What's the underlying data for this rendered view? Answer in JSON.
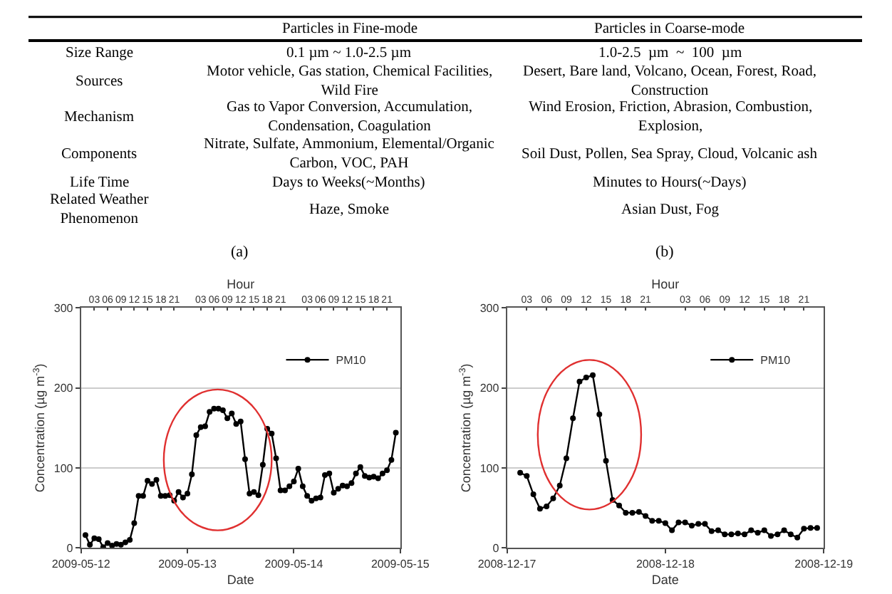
{
  "chart_data": [
    {
      "type": "other",
      "annotations": [
        "Particles in Fine-mode",
        "Particles in Coarse-mode",
        "Size Range",
        "0.1 µm ~ 1.0-2.5 µm",
        "1.0-2.5  µm  ~  100  µm",
        "Sources",
        "Motor vehicle, Gas station, Chemical Facilities, Wild Fire",
        "Desert, Bare land, Volcano, Ocean, Forest, Road, Construction",
        "Mechanism",
        "Gas to Vapor Conversion, Accumulation, Condensation, Coagulation",
        "Wind Erosion, Friction, Abrasion, Combustion, Explosion,",
        "Components",
        "Nitrate, Sulfate, Ammonium, Elemental/Organic Carbon, VOC, PAH",
        "Soil Dust, Pollen, Sea Spray, Cloud, Volcanic ash",
        "Life Time",
        "Days to Weeks(~Months)",
        "Minutes to Hours(~Days)",
        "Related Weather Phenomenon",
        "Haze, Smoke",
        "Asian Dust, Fog"
      ]
    },
    {
      "type": "line",
      "title": "(a)",
      "xlabel": "Date",
      "ylabel": "Concentration (µg m$^{-3}$)",
      "x2label": "Hour",
      "xlim": [
        "2009-05-12",
        "2009-05-15"
      ],
      "xticks": [
        {
          "value": "2009-05-12",
          "label": "2009-05-12"
        },
        {
          "value": "2009-05-13",
          "label": "2009-05-13"
        },
        {
          "value": "2009-05-14",
          "label": "2009-05-14"
        },
        {
          "value": "2009-05-15",
          "label": "2009-05-15"
        }
      ],
      "x2lim": [
        "2009-05-12",
        "2009-05-15"
      ],
      "x2ticks": [
        {
          "value": "2009-05-12T03:00",
          "label": "03"
        },
        {
          "value": "2009-05-12T06:00",
          "label": "06"
        },
        {
          "value": "2009-05-12T09:00",
          "label": "09"
        },
        {
          "value": "2009-05-12T12:00",
          "label": "12"
        },
        {
          "value": "2009-05-12T15:00",
          "label": "15"
        },
        {
          "value": "2009-05-12T18:00",
          "label": "18"
        },
        {
          "value": "2009-05-12T21:00",
          "label": "21"
        },
        {
          "value": "2009-05-13T03:00",
          "label": "03"
        },
        {
          "value": "2009-05-13T06:00",
          "label": "06"
        },
        {
          "value": "2009-05-13T09:00",
          "label": "09"
        },
        {
          "value": "2009-05-13T12:00",
          "label": "12"
        },
        {
          "value": "2009-05-13T15:00",
          "label": "15"
        },
        {
          "value": "2009-05-13T18:00",
          "label": "18"
        },
        {
          "value": "2009-05-13T21:00",
          "label": "21"
        },
        {
          "value": "2009-05-14T03:00",
          "label": "03"
        },
        {
          "value": "2009-05-14T06:00",
          "label": "06"
        },
        {
          "value": "2009-05-14T09:00",
          "label": "09"
        },
        {
          "value": "2009-05-14T12:00",
          "label": "12"
        },
        {
          "value": "2009-05-14T15:00",
          "label": "15"
        },
        {
          "value": "2009-05-14T18:00",
          "label": "18"
        },
        {
          "value": "2009-05-14T21:00",
          "label": "21"
        }
      ],
      "ylim": [
        0,
        300
      ],
      "yticks": [
        0,
        100,
        200,
        300
      ],
      "grid": "y",
      "legend": "top right",
      "marker": "circle",
      "line_style": "solid",
      "x": [
        "2009-05-12T01:00",
        "2009-05-12T02:00",
        "2009-05-12T03:00",
        "2009-05-12T04:00",
        "2009-05-12T05:00",
        "2009-05-12T06:00",
        "2009-05-12T07:00",
        "2009-05-12T08:00",
        "2009-05-12T09:00",
        "2009-05-12T10:00",
        "2009-05-12T11:00",
        "2009-05-12T12:00",
        "2009-05-12T13:00",
        "2009-05-12T14:00",
        "2009-05-12T15:00",
        "2009-05-12T16:00",
        "2009-05-12T17:00",
        "2009-05-12T18:00",
        "2009-05-12T19:00",
        "2009-05-12T20:00",
        "2009-05-12T21:00",
        "2009-05-12T22:00",
        "2009-05-12T23:00",
        "2009-05-13T00:00",
        "2009-05-13T01:00",
        "2009-05-13T02:00",
        "2009-05-13T03:00",
        "2009-05-13T04:00",
        "2009-05-13T05:00",
        "2009-05-13T06:00",
        "2009-05-13T07:00",
        "2009-05-13T08:00",
        "2009-05-13T09:00",
        "2009-05-13T10:00",
        "2009-05-13T11:00",
        "2009-05-13T12:00",
        "2009-05-13T13:00",
        "2009-05-13T14:00",
        "2009-05-13T15:00",
        "2009-05-13T16:00",
        "2009-05-13T17:00",
        "2009-05-13T18:00",
        "2009-05-13T19:00",
        "2009-05-13T20:00",
        "2009-05-13T21:00",
        "2009-05-13T22:00",
        "2009-05-13T23:00",
        "2009-05-14T00:00",
        "2009-05-14T01:00",
        "2009-05-14T02:00",
        "2009-05-14T03:00",
        "2009-05-14T04:00",
        "2009-05-14T05:00",
        "2009-05-14T06:00",
        "2009-05-14T07:00",
        "2009-05-14T08:00",
        "2009-05-14T09:00",
        "2009-05-14T10:00",
        "2009-05-14T11:00",
        "2009-05-14T12:00",
        "2009-05-14T13:00",
        "2009-05-14T14:00",
        "2009-05-14T15:00",
        "2009-05-14T16:00",
        "2009-05-14T17:00",
        "2009-05-14T18:00",
        "2009-05-14T19:00",
        "2009-05-14T20:00",
        "2009-05-14T21:00",
        "2009-05-14T22:00",
        "2009-05-14T23:00"
      ],
      "series": [
        {
          "name": "PM10",
          "color": "#000000",
          "values": [
            16,
            4,
            12,
            11,
            1,
            6,
            3,
            5,
            4,
            7,
            10,
            31,
            65,
            65,
            84,
            80,
            85,
            65,
            65,
            66,
            59,
            70,
            63,
            68,
            92,
            141,
            151,
            152,
            170,
            174,
            174,
            172,
            162,
            168,
            155,
            158,
            111,
            68,
            70,
            66,
            104,
            149,
            143,
            112,
            72,
            72,
            77,
            83,
            99,
            77,
            65,
            59,
            62,
            63,
            91,
            93,
            69,
            74,
            78,
            77,
            81,
            93,
            101,
            90,
            88,
            89,
            87,
            93,
            97,
            110,
            144
          ]
        }
      ]
    },
    {
      "type": "line",
      "title": "(b)",
      "xlabel": "Date",
      "ylabel": "Concentration (µg m$^{-3}$)",
      "x2label": "Hour",
      "xlim": [
        "2008-12-17",
        "2008-12-19"
      ],
      "xticks": [
        {
          "value": "2008-12-17",
          "label": "2008-12-17"
        },
        {
          "value": "2008-12-18",
          "label": "2008-12-18"
        },
        {
          "value": "2008-12-19",
          "label": "2008-12-19"
        }
      ],
      "x2lim": [
        "2008-12-17",
        "2008-12-19"
      ],
      "x2ticks": [
        {
          "value": "2008-12-17T03:00",
          "label": "03"
        },
        {
          "value": "2008-12-17T06:00",
          "label": "06"
        },
        {
          "value": "2008-12-17T09:00",
          "label": "09"
        },
        {
          "value": "2008-12-17T12:00",
          "label": "12"
        },
        {
          "value": "2008-12-17T15:00",
          "label": "15"
        },
        {
          "value": "2008-12-17T18:00",
          "label": "18"
        },
        {
          "value": "2008-12-17T21:00",
          "label": "21"
        },
        {
          "value": "2008-12-18T03:00",
          "label": "03"
        },
        {
          "value": "2008-12-18T06:00",
          "label": "06"
        },
        {
          "value": "2008-12-18T09:00",
          "label": "09"
        },
        {
          "value": "2008-12-18T12:00",
          "label": "12"
        },
        {
          "value": "2008-12-18T15:00",
          "label": "15"
        },
        {
          "value": "2008-12-18T18:00",
          "label": "18"
        },
        {
          "value": "2008-12-18T21:00",
          "label": "21"
        }
      ],
      "ylim": [
        0,
        300
      ],
      "yticks": [
        0,
        100,
        200,
        300
      ],
      "grid": "y",
      "legend": "top right",
      "marker": "circle",
      "line_style": "solid",
      "x": [
        "2008-12-17T02:00",
        "2008-12-17T03:00",
        "2008-12-17T04:00",
        "2008-12-17T05:00",
        "2008-12-17T06:00",
        "2008-12-17T07:00",
        "2008-12-17T08:00",
        "2008-12-17T09:00",
        "2008-12-17T10:00",
        "2008-12-17T11:00",
        "2008-12-17T12:00",
        "2008-12-17T13:00",
        "2008-12-17T14:00",
        "2008-12-17T15:00",
        "2008-12-17T16:00",
        "2008-12-17T17:00",
        "2008-12-17T18:00",
        "2008-12-17T19:00",
        "2008-12-17T20:00",
        "2008-12-17T21:00",
        "2008-12-17T22:00",
        "2008-12-17T23:00",
        "2008-12-18T00:00",
        "2008-12-18T01:00",
        "2008-12-18T02:00",
        "2008-12-18T03:00",
        "2008-12-18T04:00",
        "2008-12-18T05:00",
        "2008-12-18T06:00",
        "2008-12-18T07:00",
        "2008-12-18T08:00",
        "2008-12-18T09:00",
        "2008-12-18T10:00",
        "2008-12-18T11:00",
        "2008-12-18T12:00",
        "2008-12-18T13:00",
        "2008-12-18T14:00",
        "2008-12-18T15:00",
        "2008-12-18T16:00",
        "2008-12-18T17:00",
        "2008-12-18T18:00",
        "2008-12-18T19:00",
        "2008-12-18T20:00",
        "2008-12-18T21:00",
        "2008-12-18T22:00",
        "2008-12-18T23:00"
      ],
      "series": [
        {
          "name": "PM10",
          "color": "#000000",
          "values": [
            94,
            90,
            67,
            49,
            52,
            62,
            78,
            112,
            162,
            208,
            213,
            216,
            167,
            109,
            60,
            53,
            44,
            44,
            45,
            40,
            34,
            34,
            31,
            22,
            32,
            32,
            28,
            30,
            30,
            21,
            22,
            17,
            17,
            18,
            17,
            22,
            19,
            22,
            15,
            17,
            22,
            17,
            13,
            24,
            25,
            25
          ]
        }
      ]
    }
  ]
}
